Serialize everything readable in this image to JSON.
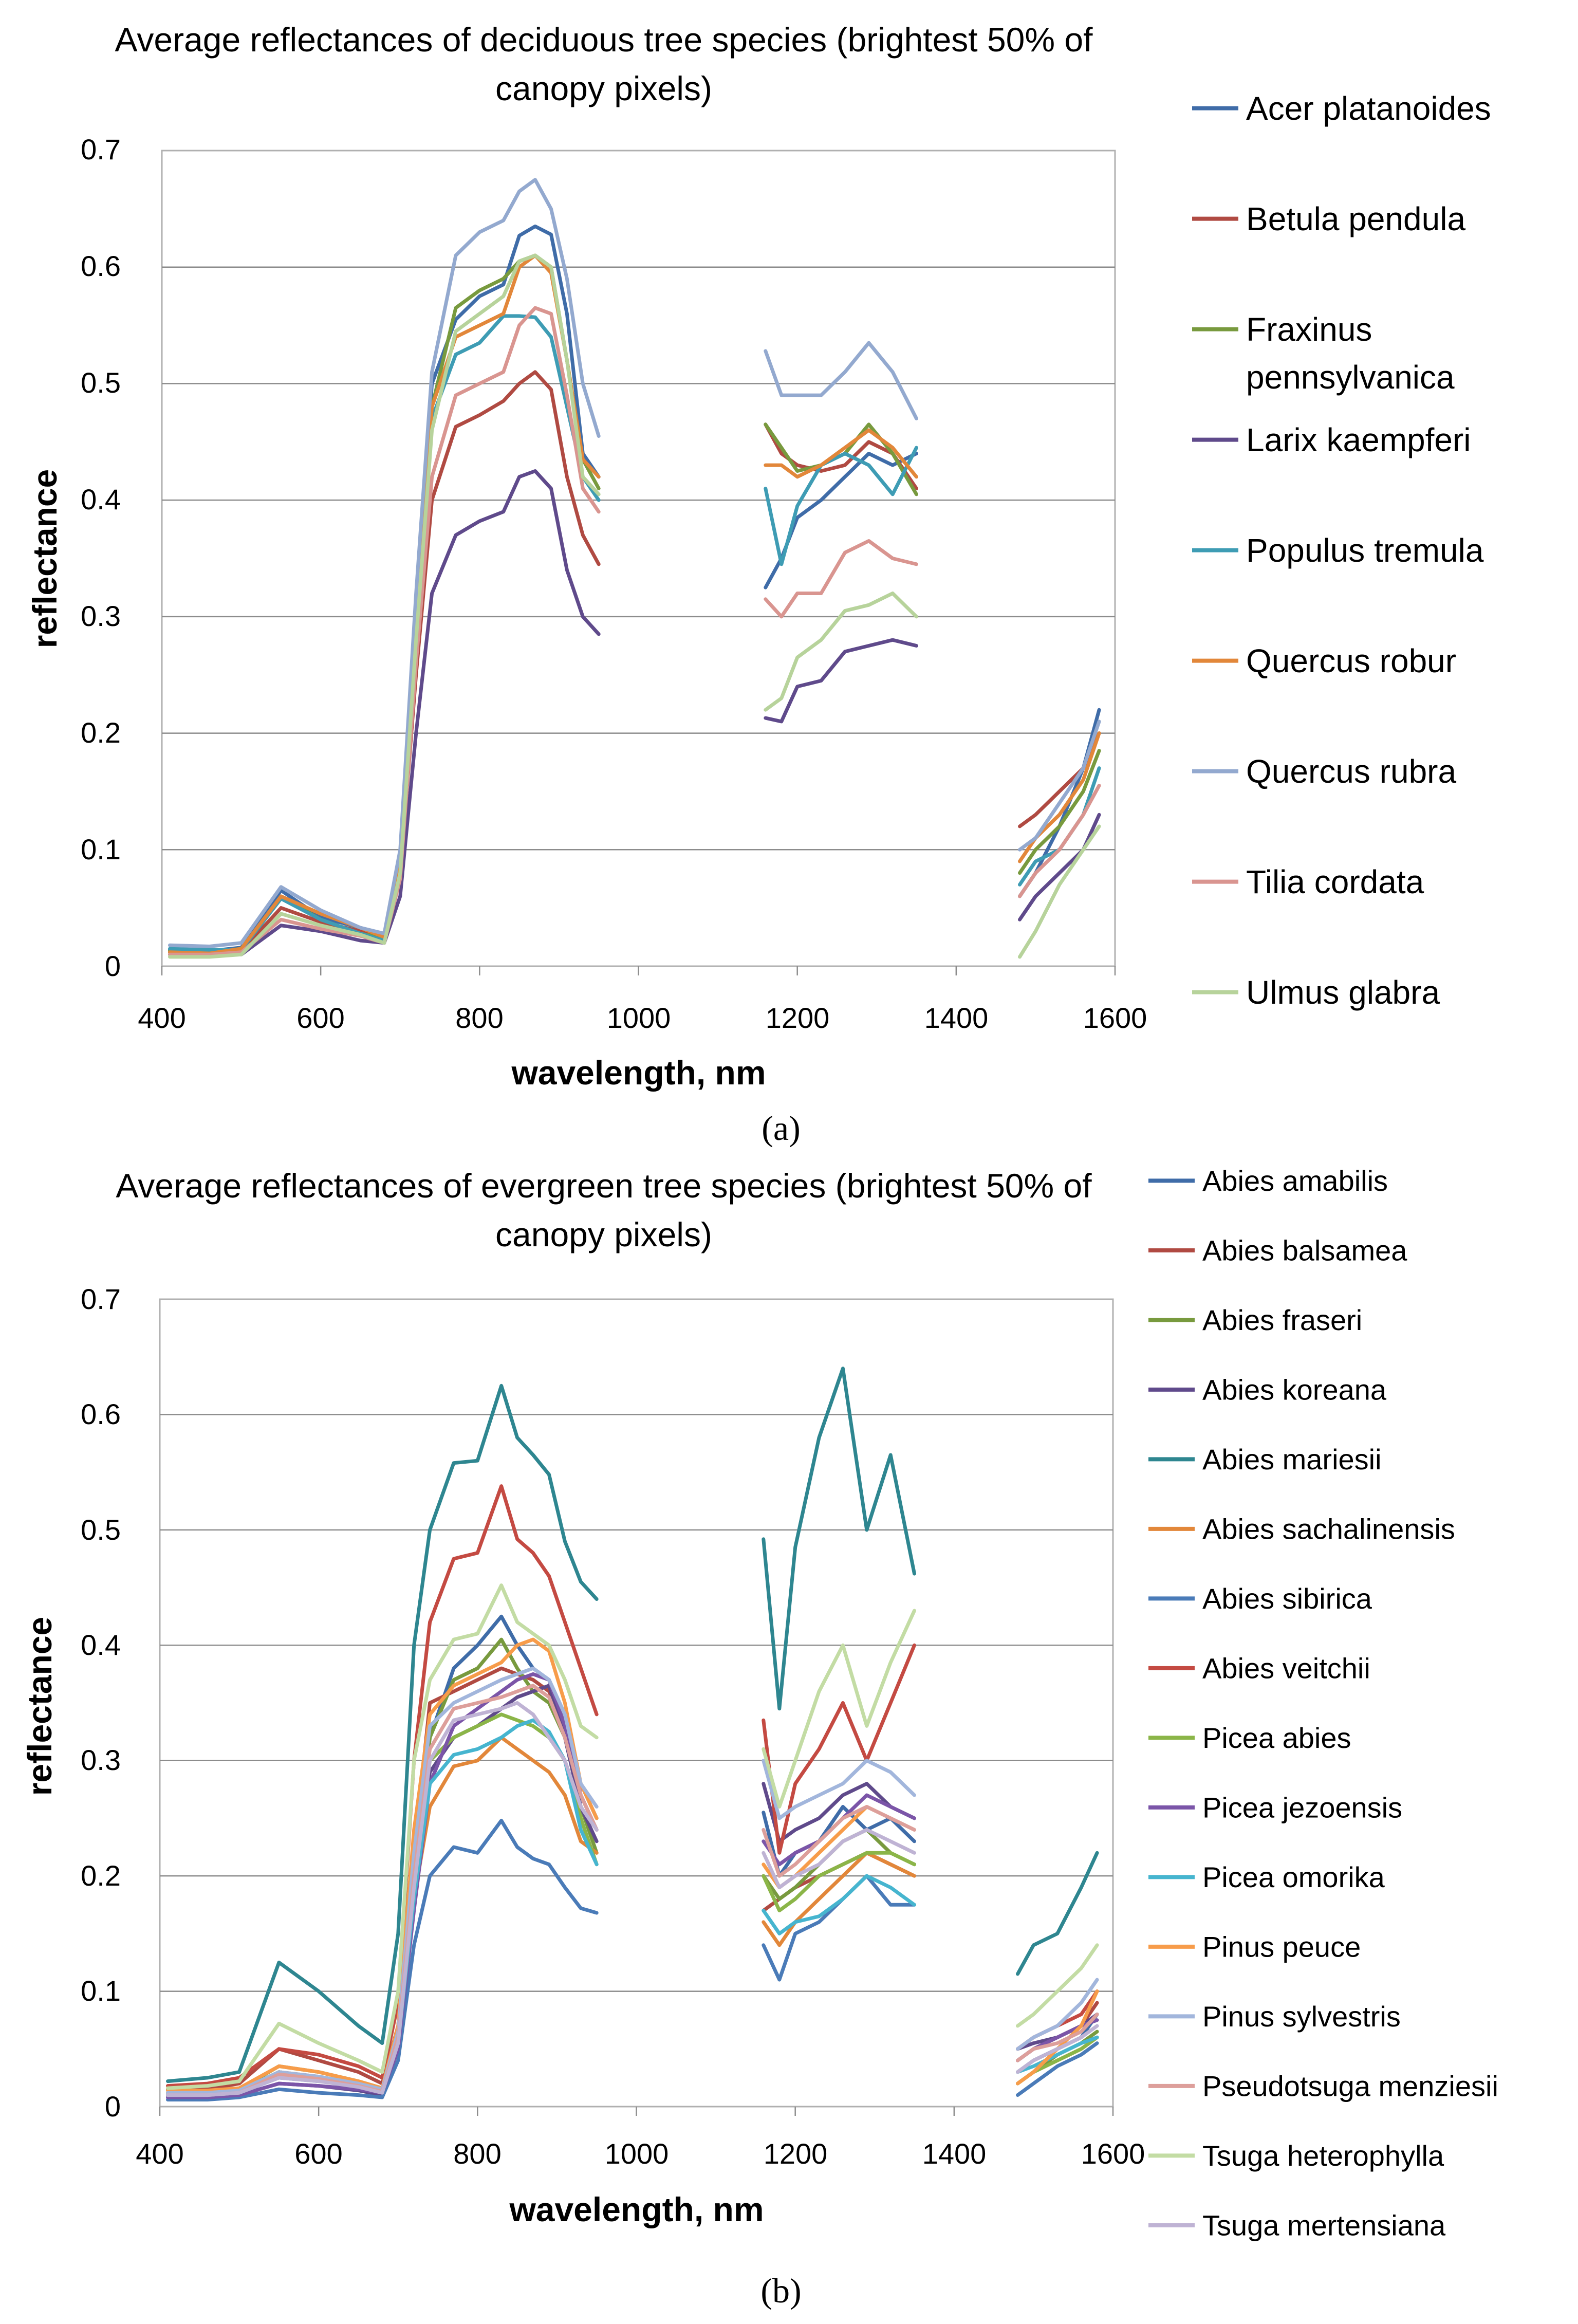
{
  "figure": {
    "panel_a_label": "(a)",
    "panel_b_label": "(b)"
  },
  "chart_data": [
    {
      "type": "line",
      "title_line1": "Average  reflectances of deciduous tree species (brightest 50% of",
      "title_line2": "canopy pixels)",
      "xlabel": "wavelength, nm",
      "ylabel": "reflectance",
      "xlim": [
        400,
        1600
      ],
      "ylim": [
        0,
        0.7
      ],
      "xticks": [
        "400",
        "600",
        "800",
        "1000",
        "1200",
        "1400",
        "1600"
      ],
      "yticks": [
        "0",
        "0.1",
        "0.2",
        "0.3",
        "0.4",
        "0.5",
        "0.6",
        "0.7"
      ],
      "x": [
        410,
        460,
        500,
        550,
        600,
        650,
        680,
        700,
        720,
        740,
        770,
        800,
        830,
        850,
        870,
        890,
        910,
        930,
        950,
        1160,
        1180,
        1200,
        1230,
        1260,
        1290,
        1320,
        1350,
        1480,
        1500,
        1530,
        1560,
        1580
      ],
      "series": [
        {
          "name": "Acer platanoides",
          "color": "#3f6ca8",
          "values": [
            0.014,
            0.013,
            0.016,
            0.065,
            0.042,
            0.033,
            0.027,
            0.09,
            0.3,
            0.5,
            0.555,
            0.575,
            0.585,
            0.627,
            0.635,
            0.628,
            0.56,
            0.44,
            0.42,
            0.325,
            0.35,
            0.385,
            0.4,
            0.42,
            0.44,
            0.43,
            0.44,
            0.06,
            0.08,
            0.12,
            0.17,
            0.22
          ]
        },
        {
          "name": "Betula pendula",
          "color": "#b04a42",
          "values": [
            0.012,
            0.011,
            0.013,
            0.05,
            0.038,
            0.03,
            0.025,
            0.08,
            0.25,
            0.4,
            0.463,
            0.473,
            0.485,
            0.5,
            0.51,
            0.495,
            0.42,
            0.37,
            0.345,
            0.465,
            0.44,
            0.43,
            0.425,
            0.43,
            0.45,
            0.44,
            0.41,
            0.12,
            0.13,
            0.15,
            0.17,
            0.2
          ]
        },
        {
          "name": "Fraxinus pennsylvanica",
          "color": "#789a3e",
          "values": [
            0.013,
            0.012,
            0.015,
            0.06,
            0.04,
            0.028,
            0.024,
            0.085,
            0.29,
            0.48,
            0.565,
            0.58,
            0.59,
            0.605,
            0.61,
            0.6,
            0.52,
            0.435,
            0.41,
            0.465,
            0.445,
            0.425,
            0.43,
            0.44,
            0.465,
            0.44,
            0.405,
            0.08,
            0.1,
            0.12,
            0.15,
            0.185
          ]
        },
        {
          "name": "Larix kaempferi",
          "color": "#5f4a8b",
          "values": [
            0.01,
            0.009,
            0.01,
            0.035,
            0.03,
            0.022,
            0.02,
            0.06,
            0.2,
            0.32,
            0.37,
            0.382,
            0.39,
            0.42,
            0.425,
            0.41,
            0.34,
            0.3,
            0.285,
            0.213,
            0.21,
            0.24,
            0.245,
            0.27,
            0.275,
            0.28,
            0.275,
            0.04,
            0.06,
            0.08,
            0.1,
            0.13
          ]
        },
        {
          "name": "Populus tremula",
          "color": "#3e9cb4",
          "values": [
            0.015,
            0.014,
            0.014,
            0.058,
            0.04,
            0.028,
            0.022,
            0.08,
            0.28,
            0.47,
            0.525,
            0.535,
            0.558,
            0.558,
            0.557,
            0.54,
            0.48,
            0.42,
            0.4,
            0.41,
            0.345,
            0.395,
            0.43,
            0.44,
            0.43,
            0.405,
            0.445,
            0.07,
            0.09,
            0.1,
            0.13,
            0.17
          ]
        },
        {
          "name": "Quercus robur",
          "color": "#e2873a",
          "values": [
            0.012,
            0.011,
            0.015,
            0.06,
            0.045,
            0.033,
            0.025,
            0.09,
            0.3,
            0.48,
            0.54,
            0.55,
            0.56,
            0.6,
            0.61,
            0.595,
            0.52,
            0.435,
            0.42,
            0.43,
            0.43,
            0.42,
            0.43,
            0.445,
            0.46,
            0.445,
            0.42,
            0.09,
            0.11,
            0.13,
            0.16,
            0.2
          ]
        },
        {
          "name": "Quercus rubra",
          "color": "#93a9cf",
          "values": [
            0.018,
            0.017,
            0.02,
            0.068,
            0.048,
            0.033,
            0.028,
            0.1,
            0.32,
            0.51,
            0.61,
            0.63,
            0.64,
            0.665,
            0.675,
            0.65,
            0.59,
            0.5,
            0.455,
            0.528,
            0.49,
            0.49,
            0.49,
            0.51,
            0.535,
            0.51,
            0.47,
            0.1,
            0.11,
            0.14,
            0.17,
            0.21
          ]
        },
        {
          "name": "Tilia cordata",
          "color": "#d99590",
          "values": [
            0.01,
            0.01,
            0.012,
            0.04,
            0.032,
            0.026,
            0.02,
            0.075,
            0.26,
            0.42,
            0.49,
            0.5,
            0.51,
            0.55,
            0.565,
            0.56,
            0.49,
            0.41,
            0.39,
            0.315,
            0.3,
            0.32,
            0.32,
            0.355,
            0.365,
            0.35,
            0.345,
            0.06,
            0.08,
            0.1,
            0.13,
            0.155
          ]
        },
        {
          "name": "Ulmus glabra",
          "color": "#b7d39b",
          "values": [
            0.008,
            0.008,
            0.01,
            0.045,
            0.035,
            0.027,
            0.02,
            0.08,
            0.28,
            0.46,
            0.545,
            0.56,
            0.575,
            0.605,
            0.61,
            0.6,
            0.52,
            0.42,
            0.405,
            0.22,
            0.23,
            0.265,
            0.28,
            0.305,
            0.31,
            0.32,
            0.3,
            0.008,
            0.03,
            0.07,
            0.1,
            0.12
          ]
        }
      ]
    },
    {
      "type": "line",
      "title_line1": "Average  reflectances of evergreen tree species (brightest 50% of",
      "title_line2": "canopy pixels)",
      "xlabel": "wavelength, nm",
      "ylabel": "reflectance",
      "xlim": [
        400,
        1600
      ],
      "ylim": [
        0,
        0.7
      ],
      "xticks": [
        "400",
        "600",
        "800",
        "1000",
        "1200",
        "1400",
        "1600"
      ],
      "yticks": [
        "0",
        "0.1",
        "0.2",
        "0.3",
        "0.4",
        "0.5",
        "0.6",
        "0.7"
      ],
      "x": [
        410,
        460,
        500,
        550,
        600,
        650,
        680,
        700,
        720,
        740,
        770,
        800,
        830,
        850,
        870,
        890,
        910,
        930,
        950,
        1160,
        1180,
        1200,
        1230,
        1260,
        1290,
        1320,
        1350,
        1480,
        1500,
        1530,
        1560,
        1580
      ],
      "series": [
        {
          "name": "Abies amabilis",
          "color": "#3f6ca8",
          "values": [
            0.01,
            0.01,
            0.012,
            0.03,
            0.025,
            0.02,
            0.015,
            0.06,
            0.2,
            0.32,
            0.38,
            0.4,
            0.425,
            0.4,
            0.38,
            0.37,
            0.34,
            0.28,
            0.25,
            0.255,
            0.2,
            0.22,
            0.23,
            0.26,
            0.24,
            0.25,
            0.23,
            0.03,
            0.04,
            0.05,
            0.06,
            0.08
          ]
        },
        {
          "name": "Abies balsamea",
          "color": "#b04a42",
          "values": [
            0.015,
            0.015,
            0.02,
            0.05,
            0.04,
            0.03,
            0.02,
            0.07,
            0.22,
            0.35,
            0.36,
            0.37,
            0.38,
            0.375,
            0.37,
            0.36,
            0.33,
            0.27,
            0.24,
            0.17,
            0.18,
            0.19,
            0.2,
            0.21,
            0.22,
            0.21,
            0.2,
            0.04,
            0.05,
            0.06,
            0.07,
            0.09
          ]
        },
        {
          "name": "Abies fraseri",
          "color": "#789a3e",
          "values": [
            0.012,
            0.012,
            0.015,
            0.035,
            0.03,
            0.022,
            0.016,
            0.06,
            0.2,
            0.32,
            0.37,
            0.38,
            0.405,
            0.38,
            0.36,
            0.35,
            0.32,
            0.26,
            0.22,
            0.2,
            0.18,
            0.19,
            0.21,
            0.23,
            0.24,
            0.22,
            0.21,
            0.02,
            0.03,
            0.045,
            0.055,
            0.065
          ]
        },
        {
          "name": "Abies koreana",
          "color": "#5f4a8b",
          "values": [
            0.008,
            0.008,
            0.01,
            0.02,
            0.018,
            0.014,
            0.01,
            0.05,
            0.18,
            0.29,
            0.32,
            0.33,
            0.345,
            0.355,
            0.36,
            0.365,
            0.32,
            0.26,
            0.23,
            0.28,
            0.23,
            0.24,
            0.25,
            0.27,
            0.28,
            0.26,
            0.25,
            0.05,
            0.055,
            0.06,
            0.07,
            0.08
          ]
        },
        {
          "name": "Abies mariesii",
          "color": "#2e8690",
          "values": [
            0.022,
            0.025,
            0.03,
            0.125,
            0.1,
            0.07,
            0.055,
            0.15,
            0.4,
            0.5,
            0.558,
            0.56,
            0.625,
            0.58,
            0.565,
            0.548,
            0.49,
            0.455,
            0.44,
            0.492,
            0.345,
            0.485,
            0.58,
            0.64,
            0.5,
            0.565,
            0.462,
            0.115,
            0.14,
            0.15,
            0.19,
            0.22
          ]
        },
        {
          "name": "Abies sachalinensis",
          "color": "#e2873a",
          "values": [
            0.01,
            0.01,
            0.012,
            0.03,
            0.026,
            0.02,
            0.015,
            0.055,
            0.18,
            0.26,
            0.295,
            0.3,
            0.32,
            0.31,
            0.3,
            0.29,
            0.27,
            0.23,
            0.22,
            0.16,
            0.14,
            0.16,
            0.18,
            0.2,
            0.22,
            0.21,
            0.2,
            0.02,
            0.03,
            0.04,
            0.05,
            0.06
          ]
        },
        {
          "name": "Abies sibirica",
          "color": "#4a7bb8",
          "values": [
            0.006,
            0.006,
            0.008,
            0.015,
            0.012,
            0.01,
            0.008,
            0.04,
            0.14,
            0.2,
            0.225,
            0.22,
            0.248,
            0.225,
            0.215,
            0.21,
            0.19,
            0.172,
            0.168,
            0.14,
            0.11,
            0.15,
            0.16,
            0.18,
            0.2,
            0.175,
            0.175,
            0.01,
            0.02,
            0.035,
            0.045,
            0.055
          ]
        },
        {
          "name": "Abies veitchii",
          "color": "#c44a42",
          "values": [
            0.018,
            0.02,
            0.025,
            0.05,
            0.045,
            0.035,
            0.025,
            0.09,
            0.3,
            0.42,
            0.475,
            0.48,
            0.538,
            0.492,
            0.48,
            0.46,
            0.42,
            0.38,
            0.34,
            0.335,
            0.22,
            0.28,
            0.31,
            0.35,
            0.3,
            0.35,
            0.4,
            0.05,
            0.06,
            0.07,
            0.08,
            0.1
          ]
        },
        {
          "name": "Picea abies",
          "color": "#8bb548",
          "values": [
            0.012,
            0.012,
            0.014,
            0.03,
            0.025,
            0.02,
            0.014,
            0.06,
            0.2,
            0.3,
            0.32,
            0.33,
            0.34,
            0.335,
            0.33,
            0.32,
            0.3,
            0.25,
            0.21,
            0.2,
            0.17,
            0.18,
            0.2,
            0.21,
            0.22,
            0.22,
            0.21,
            0.02,
            0.03,
            0.04,
            0.05,
            0.06
          ]
        },
        {
          "name": "Picea jezoensis",
          "color": "#7b55a8",
          "values": [
            0.008,
            0.008,
            0.01,
            0.02,
            0.018,
            0.015,
            0.012,
            0.05,
            0.17,
            0.28,
            0.33,
            0.345,
            0.36,
            0.37,
            0.375,
            0.37,
            0.33,
            0.27,
            0.24,
            0.23,
            0.21,
            0.22,
            0.23,
            0.25,
            0.27,
            0.26,
            0.25,
            0.04,
            0.05,
            0.06,
            0.07,
            0.075
          ]
        },
        {
          "name": "Picea omorika",
          "color": "#46b5cf",
          "values": [
            0.01,
            0.01,
            0.012,
            0.025,
            0.022,
            0.018,
            0.014,
            0.055,
            0.18,
            0.28,
            0.305,
            0.31,
            0.32,
            0.33,
            0.335,
            0.325,
            0.3,
            0.24,
            0.21,
            0.17,
            0.15,
            0.16,
            0.165,
            0.18,
            0.2,
            0.19,
            0.175,
            0.03,
            0.035,
            0.045,
            0.055,
            0.06
          ]
        },
        {
          "name": "Pinus peuce",
          "color": "#f79c4a",
          "values": [
            0.014,
            0.014,
            0.016,
            0.035,
            0.03,
            0.022,
            0.016,
            0.07,
            0.24,
            0.34,
            0.365,
            0.375,
            0.385,
            0.4,
            0.405,
            0.395,
            0.35,
            0.28,
            0.25,
            0.21,
            0.19,
            0.2,
            0.22,
            0.24,
            0.26,
            0.25,
            0.24,
            0.02,
            0.03,
            0.05,
            0.07,
            0.1
          ]
        },
        {
          "name": "Pinus sylvestris",
          "color": "#a2b6dc",
          "values": [
            0.012,
            0.012,
            0.014,
            0.03,
            0.026,
            0.02,
            0.015,
            0.065,
            0.22,
            0.33,
            0.35,
            0.36,
            0.37,
            0.375,
            0.38,
            0.37,
            0.34,
            0.28,
            0.26,
            0.3,
            0.25,
            0.26,
            0.27,
            0.28,
            0.3,
            0.29,
            0.27,
            0.05,
            0.06,
            0.07,
            0.09,
            0.11
          ]
        },
        {
          "name": "Pseudotsuga menziesii",
          "color": "#dd9f9b",
          "values": [
            0.01,
            0.01,
            0.012,
            0.028,
            0.024,
            0.018,
            0.013,
            0.06,
            0.2,
            0.31,
            0.345,
            0.35,
            0.355,
            0.36,
            0.365,
            0.355,
            0.32,
            0.27,
            0.24,
            0.24,
            0.2,
            0.21,
            0.23,
            0.25,
            0.26,
            0.25,
            0.24,
            0.04,
            0.05,
            0.055,
            0.065,
            0.08
          ]
        },
        {
          "name": "Tsuga heterophylla",
          "color": "#c3dca4",
          "values": [
            0.016,
            0.018,
            0.022,
            0.072,
            0.055,
            0.04,
            0.03,
            0.1,
            0.3,
            0.37,
            0.405,
            0.41,
            0.452,
            0.42,
            0.41,
            0.4,
            0.37,
            0.33,
            0.32,
            0.31,
            0.26,
            0.3,
            0.36,
            0.4,
            0.33,
            0.385,
            0.43,
            0.07,
            0.08,
            0.1,
            0.12,
            0.14
          ]
        },
        {
          "name": "Tsuga mertensiana",
          "color": "#bfb3d4",
          "values": [
            0.01,
            0.01,
            0.012,
            0.025,
            0.022,
            0.017,
            0.012,
            0.055,
            0.19,
            0.3,
            0.335,
            0.34,
            0.345,
            0.35,
            0.34,
            0.32,
            0.3,
            0.26,
            0.24,
            0.22,
            0.19,
            0.2,
            0.21,
            0.23,
            0.24,
            0.23,
            0.22,
            0.03,
            0.04,
            0.05,
            0.06,
            0.07
          ]
        }
      ]
    }
  ]
}
